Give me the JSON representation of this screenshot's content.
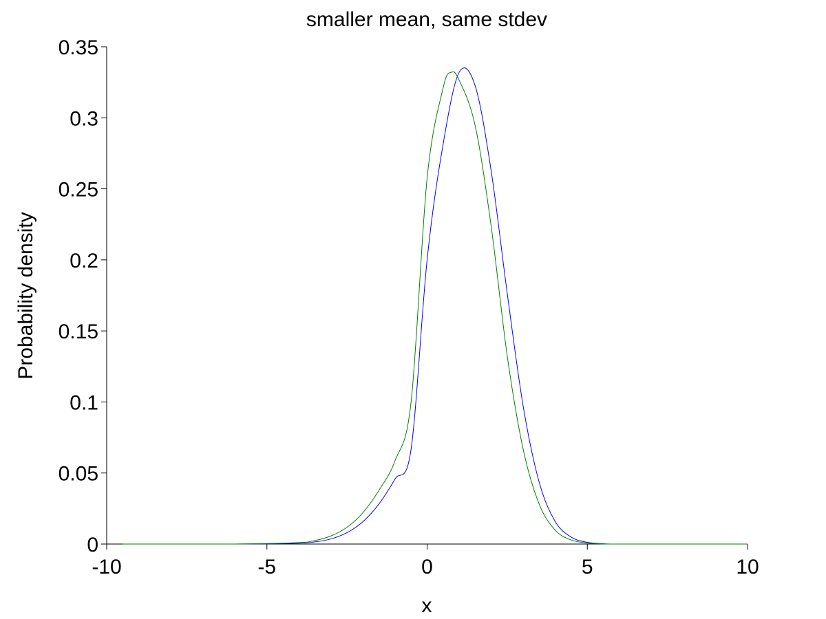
{
  "chart_data": {
    "type": "line",
    "title": "smaller mean, same stdev",
    "xlabel": "x",
    "ylabel": "Probability density",
    "xlim": [
      -10,
      10
    ],
    "ylim": [
      0,
      0.35
    ],
    "xticks": [
      -10,
      -5,
      0,
      5,
      10
    ],
    "xtick_labels": [
      "-10",
      "-5",
      "0",
      "5",
      "10"
    ],
    "yticks": [
      0,
      0.05,
      0.1,
      0.15,
      0.2,
      0.25,
      0.3,
      0.35
    ],
    "ytick_labels": [
      "0",
      "0.05",
      "0.1",
      "0.15",
      "0.2",
      "0.25",
      "0.3",
      "0.35"
    ],
    "grid": false,
    "series": [
      {
        "color": "#0000ff",
        "x": [
          -9.5,
          -6,
          -4,
          -3.5,
          -3,
          -2.5,
          -2,
          -1.5,
          -1,
          -0.5,
          0,
          0.5,
          1,
          1.5,
          2,
          2.5,
          3,
          3.5,
          4,
          4.5,
          5,
          5.5,
          6,
          8,
          10
        ],
        "y": [
          0.0,
          0.0,
          0.0006,
          0.0015,
          0.0036,
          0.008,
          0.0158,
          0.0283,
          0.0458,
          0.0668,
          0.2,
          0.2815,
          0.332,
          0.3225,
          0.2625,
          0.1765,
          0.0968,
          0.0433,
          0.0158,
          0.0048,
          0.0012,
          0.0002,
          0.0,
          0.0,
          0.0
        ]
      },
      {
        "color": "#008000",
        "x": [
          -9.5,
          -6,
          -4,
          -3.5,
          -3,
          -2.5,
          -2,
          -1.5,
          -1,
          -0.5,
          0,
          0.5,
          0.75,
          1,
          1.5,
          2,
          2.5,
          3,
          3.5,
          4,
          4.5,
          5,
          5.5,
          6,
          8,
          10
        ],
        "y": [
          0.0,
          0.0,
          0.001,
          0.0025,
          0.0057,
          0.0118,
          0.0222,
          0.0379,
          0.0587,
          0.1,
          0.2575,
          0.321,
          0.332,
          0.3265,
          0.2945,
          0.2235,
          0.1325,
          0.0665,
          0.028,
          0.0097,
          0.0028,
          0.0007,
          0.0001,
          0.0,
          0.0,
          0.0
        ]
      }
    ]
  }
}
